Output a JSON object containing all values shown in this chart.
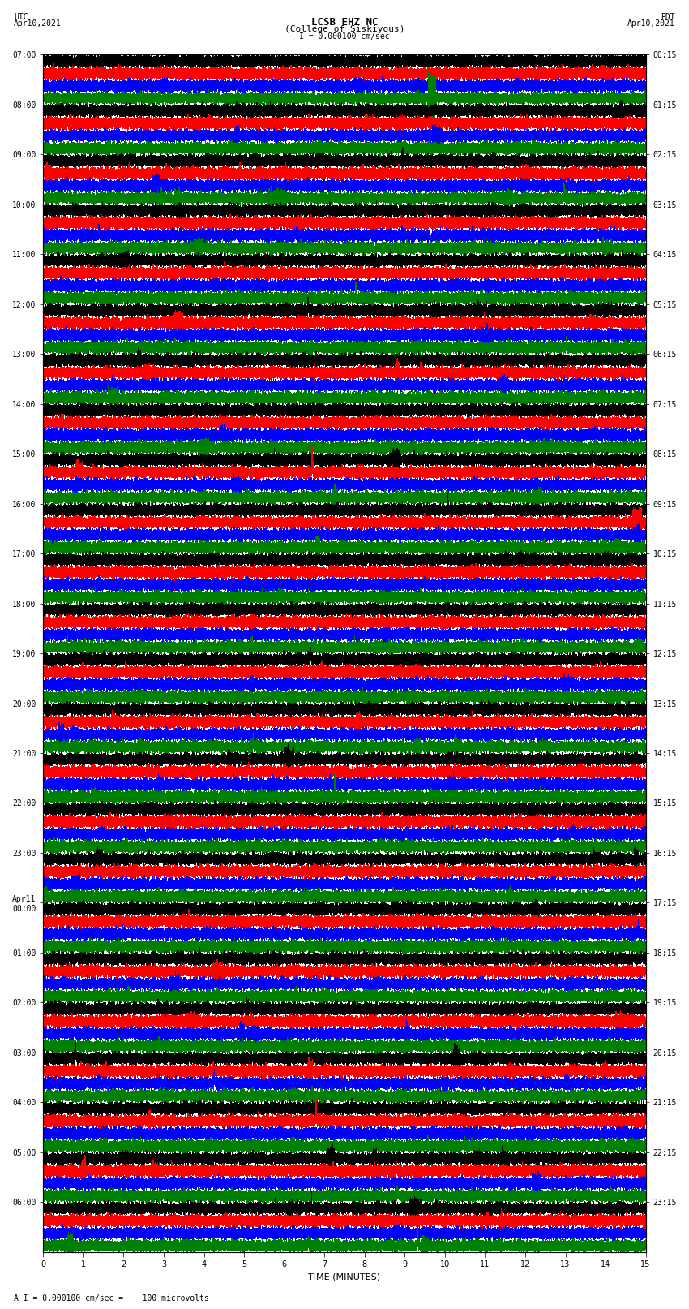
{
  "title_line1": "LCSB EHZ NC",
  "title_line2": "(College of Siskiyous)",
  "scale_label": "I = 0.000100 cm/sec",
  "bottom_label": "A I = 0.000100 cm/sec =    100 microvolts",
  "utc_label": "UTC\nApr10,2021",
  "pdt_label": "PDT\nApr10,2021",
  "xlabel": "TIME (MINUTES)",
  "left_times_utc": [
    "07:00",
    "08:00",
    "09:00",
    "10:00",
    "11:00",
    "12:00",
    "13:00",
    "14:00",
    "15:00",
    "16:00",
    "17:00",
    "18:00",
    "19:00",
    "20:00",
    "21:00",
    "22:00",
    "23:00",
    "Apr11\n00:00",
    "01:00",
    "02:00",
    "03:00",
    "04:00",
    "05:00",
    "06:00"
  ],
  "right_times_pdt": [
    "00:15",
    "01:15",
    "02:15",
    "03:15",
    "04:15",
    "05:15",
    "06:15",
    "07:15",
    "08:15",
    "09:15",
    "10:15",
    "11:15",
    "12:15",
    "13:15",
    "14:15",
    "15:15",
    "16:15",
    "17:15",
    "18:15",
    "19:15",
    "20:15",
    "21:15",
    "22:15",
    "23:15"
  ],
  "colors": [
    "black",
    "red",
    "blue",
    "green"
  ],
  "num_rows": 24,
  "traces_per_row": 4,
  "minutes": 15,
  "sample_rate": 50,
  "amplitude_scale": 0.42,
  "fig_width": 8.5,
  "fig_height": 16.13,
  "bg_color": "white",
  "trace_linewidth": 0.3,
  "font_size_title": 9,
  "font_size_labels": 7,
  "font_size_ticks": 7,
  "seed": 42
}
